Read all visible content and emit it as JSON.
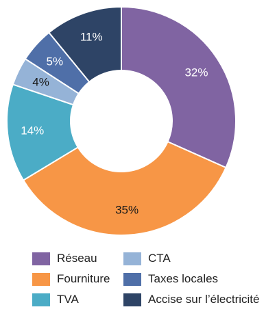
{
  "chart_data": {
    "type": "pie",
    "variant": "donut",
    "title": "",
    "categories": [
      "Réseau",
      "Fourniture",
      "TVA",
      "CTA",
      "Taxes locales",
      "Accise sur l’électricité"
    ],
    "values": [
      32,
      35,
      14,
      4,
      5,
      11
    ],
    "labels": [
      "32%",
      "35%",
      "14%",
      "4%",
      "5%",
      "11%"
    ],
    "colors": [
      "#8064a2",
      "#f79646",
      "#4bacc6",
      "#95b3d7",
      "#4f6fa8",
      "#2e4466"
    ],
    "label_colors": [
      "#ffffff",
      "#1a1a1a",
      "#ffffff",
      "#1a1a1a",
      "#ffffff",
      "#ffffff"
    ],
    "legend_position": "bottom",
    "legend": [
      {
        "label": "Réseau",
        "color": "#8064a2"
      },
      {
        "label": "Fourniture",
        "color": "#f79646"
      },
      {
        "label": "TVA",
        "color": "#4bacc6"
      },
      {
        "label": "CTA",
        "color": "#95b3d7"
      },
      {
        "label": "Taxes locales",
        "color": "#4f6fa8"
      },
      {
        "label": "Accise sur l’électricité",
        "color": "#2e4466"
      }
    ]
  }
}
